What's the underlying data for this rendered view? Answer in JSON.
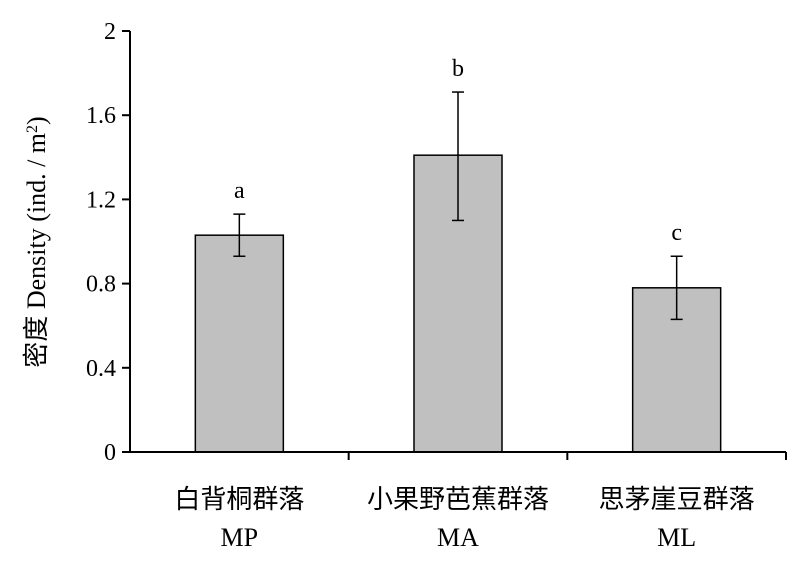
{
  "chart_data": {
    "type": "bar",
    "categories": [
      {
        "name_zh": "白背桐群落",
        "code": "MP"
      },
      {
        "name_zh": "小果野芭蕉群落",
        "code": "MA"
      },
      {
        "name_zh": "思茅崖豆群落",
        "code": "ML"
      }
    ],
    "values": [
      1.03,
      1.41,
      0.78
    ],
    "error": {
      "upper": [
        1.13,
        1.71,
        0.93
      ],
      "lower": [
        0.93,
        1.1,
        0.63
      ]
    },
    "significance_labels": [
      "a",
      "b",
      "c"
    ],
    "ylabel": {
      "prefix": "密度  Density (ind. / m",
      "superscript": "2",
      "suffix": ")"
    },
    "ylim": [
      0,
      2
    ],
    "yticks": [
      0,
      0.4,
      0.8,
      1.2,
      1.6,
      2
    ],
    "ytick_labels": [
      "0",
      "0.4",
      "0.8",
      "1.2",
      "1.6",
      "2"
    ],
    "grid": false,
    "bar_color": "#c0c0c0",
    "axis_color": "#000000"
  }
}
